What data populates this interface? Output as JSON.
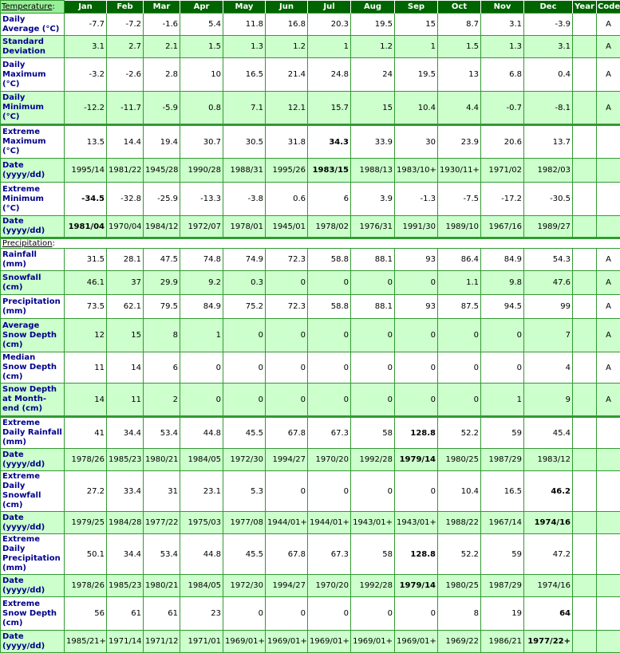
{
  "headers": [
    "Jan",
    "Feb",
    "Mar",
    "Apr",
    "May",
    "Jun",
    "Jul",
    "Aug",
    "Sep",
    "Oct",
    "Nov",
    "Dec",
    "Year",
    "Code"
  ],
  "temperature_title": "Temperature",
  "precipitation_title": "Precipitation",
  "temp_rows": [
    {
      "label": "Daily Average (°C)",
      "values": [
        "-7.7",
        "-7.2",
        "-1.6",
        "5.4",
        "11.8",
        "16.8",
        "20.3",
        "19.5",
        "15",
        "8.7",
        "3.1",
        "-3.9"
      ],
      "year": "",
      "code": "A",
      "bold": []
    },
    {
      "label": "Standard Deviation",
      "values": [
        "3.1",
        "2.7",
        "2.1",
        "1.5",
        "1.3",
        "1.2",
        "1",
        "1.2",
        "1",
        "1.5",
        "1.3",
        "3.1"
      ],
      "year": "",
      "code": "A",
      "bold": []
    },
    {
      "label": "Daily Maximum (°C)",
      "values": [
        "-3.2",
        "-2.6",
        "2.8",
        "10",
        "16.5",
        "21.4",
        "24.8",
        "24",
        "19.5",
        "13",
        "6.8",
        "0.4"
      ],
      "year": "",
      "code": "A",
      "bold": []
    },
    {
      "label": "Daily Minimum (°C)",
      "values": [
        "-12.2",
        "-11.7",
        "-5.9",
        "0.8",
        "7.1",
        "12.1",
        "15.7",
        "15",
        "10.4",
        "4.4",
        "-0.7",
        "-8.1"
      ],
      "year": "",
      "code": "A",
      "bold": []
    },
    {
      "label": "Extreme Maximum (°C)",
      "values": [
        "13.5",
        "14.4",
        "19.4",
        "30.7",
        "30.5",
        "31.8",
        "34.3",
        "33.9",
        "30",
        "23.9",
        "20.6",
        "13.7"
      ],
      "year": "",
      "code": "",
      "bold": [
        6
      ],
      "gap": true
    },
    {
      "label": "Date (yyyy/dd)",
      "values": [
        "1995/14",
        "1981/22",
        "1945/28",
        "1990/28",
        "1988/31",
        "1995/26",
        "1983/15",
        "1988/13",
        "1983/10+",
        "1930/11+",
        "1971/02",
        "1982/03"
      ],
      "year": "",
      "code": "",
      "bold": [
        6
      ]
    },
    {
      "label": "Extreme Minimum (°C)",
      "values": [
        "-34.5",
        "-32.8",
        "-25.9",
        "-13.3",
        "-3.8",
        "0.6",
        "6",
        "3.9",
        "-1.3",
        "-7.5",
        "-17.2",
        "-30.5"
      ],
      "year": "",
      "code": "",
      "bold": [
        0
      ]
    },
    {
      "label": "Date (yyyy/dd)",
      "values": [
        "1981/04",
        "1970/04",
        "1984/12",
        "1972/07",
        "1978/01",
        "1945/01",
        "1978/02",
        "1976/31",
        "1991/30",
        "1989/10",
        "1967/16",
        "1989/27"
      ],
      "year": "",
      "code": "",
      "bold": [
        0
      ]
    }
  ],
  "precip_rows": [
    {
      "label": "Rainfall (mm)",
      "values": [
        "31.5",
        "28.1",
        "47.5",
        "74.8",
        "74.9",
        "72.3",
        "58.8",
        "88.1",
        "93",
        "86.4",
        "84.9",
        "54.3"
      ],
      "year": "",
      "code": "A",
      "bold": []
    },
    {
      "label": "Snowfall (cm)",
      "values": [
        "46.1",
        "37",
        "29.9",
        "9.2",
        "0.3",
        "0",
        "0",
        "0",
        "0",
        "1.1",
        "9.8",
        "47.6"
      ],
      "year": "",
      "code": "A",
      "bold": []
    },
    {
      "label": "Precipitation (mm)",
      "values": [
        "73.5",
        "62.1",
        "79.5",
        "84.9",
        "75.2",
        "72.3",
        "58.8",
        "88.1",
        "93",
        "87.5",
        "94.5",
        "99"
      ],
      "year": "",
      "code": "A",
      "bold": []
    },
    {
      "label": "Average Snow Depth (cm)",
      "values": [
        "12",
        "15",
        "8",
        "1",
        "0",
        "0",
        "0",
        "0",
        "0",
        "0",
        "0",
        "7"
      ],
      "year": "",
      "code": "A",
      "bold": []
    },
    {
      "label": "Median Snow Depth (cm)",
      "values": [
        "11",
        "14",
        "6",
        "0",
        "0",
        "0",
        "0",
        "0",
        "0",
        "0",
        "0",
        "4"
      ],
      "year": "",
      "code": "A",
      "bold": []
    },
    {
      "label": "Snow Depth at Month-end (cm)",
      "values": [
        "14",
        "11",
        "2",
        "0",
        "0",
        "0",
        "0",
        "0",
        "0",
        "0",
        "1",
        "9"
      ],
      "year": "",
      "code": "A",
      "bold": []
    },
    {
      "label": "Extreme Daily Rainfall (mm)",
      "values": [
        "41",
        "34.4",
        "53.4",
        "44.8",
        "45.5",
        "67.8",
        "67.3",
        "58",
        "128.8",
        "52.2",
        "59",
        "45.4"
      ],
      "year": "",
      "code": "",
      "bold": [
        8
      ],
      "gap": true
    },
    {
      "label": "Date (yyyy/dd)",
      "values": [
        "1978/26",
        "1985/23",
        "1980/21",
        "1984/05",
        "1972/30",
        "1994/27",
        "1970/20",
        "1992/28",
        "1979/14",
        "1980/25",
        "1987/29",
        "1983/12"
      ],
      "year": "",
      "code": "",
      "bold": [
        8
      ]
    },
    {
      "label": "Extreme Daily Snowfall (cm)",
      "values": [
        "27.2",
        "33.4",
        "31",
        "23.1",
        "5.3",
        "0",
        "0",
        "0",
        "0",
        "10.4",
        "16.5",
        "46.2"
      ],
      "year": "",
      "code": "",
      "bold": [
        11
      ]
    },
    {
      "label": "Date (yyyy/dd)",
      "values": [
        "1979/25",
        "1984/28",
        "1977/22",
        "1975/03",
        "1977/08",
        "1944/01+",
        "1944/01+",
        "1943/01+",
        "1943/01+",
        "1988/22",
        "1967/14",
        "1974/16"
      ],
      "year": "",
      "code": "",
      "bold": [
        11
      ]
    },
    {
      "label": "Extreme Daily Precipitation (mm)",
      "values": [
        "50.1",
        "34.4",
        "53.4",
        "44.8",
        "45.5",
        "67.8",
        "67.3",
        "58",
        "128.8",
        "52.2",
        "59",
        "47.2"
      ],
      "year": "",
      "code": "",
      "bold": [
        8
      ]
    },
    {
      "label": "Date (yyyy/dd)",
      "values": [
        "1978/26",
        "1985/23",
        "1980/21",
        "1984/05",
        "1972/30",
        "1994/27",
        "1970/20",
        "1992/28",
        "1979/14",
        "1980/25",
        "1987/29",
        "1974/16"
      ],
      "year": "",
      "code": "",
      "bold": [
        8
      ]
    },
    {
      "label": "Extreme Snow Depth (cm)",
      "values": [
        "56",
        "61",
        "61",
        "23",
        "0",
        "0",
        "0",
        "0",
        "0",
        "8",
        "19",
        "64"
      ],
      "year": "",
      "code": "",
      "bold": [
        11
      ]
    },
    {
      "label": "Date (yyyy/dd)",
      "values": [
        "1985/21+",
        "1971/14",
        "1971/12",
        "1971/01",
        "1969/01+",
        "1969/01+",
        "1969/01+",
        "1969/01+",
        "1969/01+",
        "1969/22",
        "1986/21",
        "1977/22+"
      ],
      "year": "",
      "code": "",
      "bold": [
        11
      ]
    }
  ]
}
